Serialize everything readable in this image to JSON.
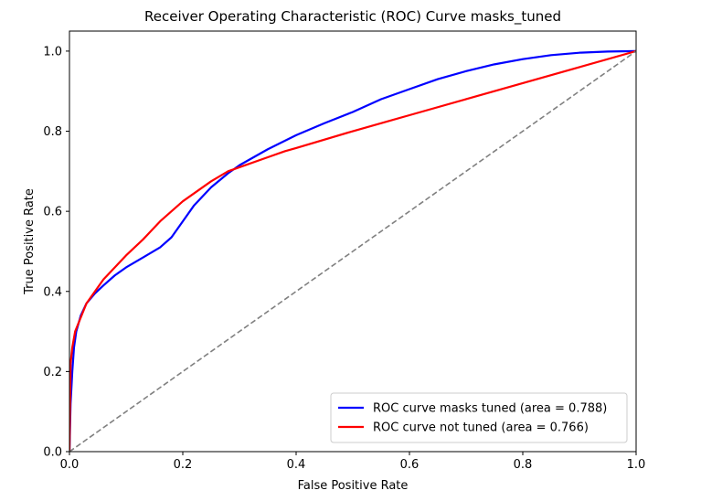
{
  "chart_data": {
    "type": "line",
    "title": "Receiver Operating Characteristic (ROC) Curve masks_tuned",
    "xlabel": "False Positive Rate",
    "ylabel": "True Positive Rate",
    "xlim": [
      0.0,
      1.0
    ],
    "ylim": [
      0.0,
      1.05
    ],
    "xticks": [
      0.0,
      0.2,
      0.4,
      0.6,
      0.8,
      1.0
    ],
    "yticks": [
      0.0,
      0.2,
      0.4,
      0.6,
      0.8,
      1.0
    ],
    "xtick_labels": [
      "0.0",
      "0.2",
      "0.4",
      "0.6",
      "0.8",
      "1.0"
    ],
    "ytick_labels": [
      "0.0",
      "0.2",
      "0.4",
      "0.6",
      "0.8",
      "1.0"
    ],
    "grid": false,
    "legend_position": "lower-right",
    "series": [
      {
        "name": "ROC curve masks tuned (area = 0.788)",
        "color": "#0000ff",
        "style": "solid",
        "x": [
          0.0,
          0.002,
          0.005,
          0.008,
          0.012,
          0.02,
          0.03,
          0.045,
          0.06,
          0.08,
          0.1,
          0.13,
          0.16,
          0.18,
          0.2,
          0.22,
          0.25,
          0.28,
          0.3,
          0.35,
          0.4,
          0.45,
          0.5,
          0.55,
          0.6,
          0.65,
          0.7,
          0.75,
          0.8,
          0.85,
          0.9,
          0.95,
          1.0
        ],
        "y": [
          0.0,
          0.12,
          0.2,
          0.26,
          0.3,
          0.34,
          0.37,
          0.395,
          0.415,
          0.44,
          0.46,
          0.485,
          0.51,
          0.535,
          0.575,
          0.615,
          0.66,
          0.695,
          0.715,
          0.755,
          0.79,
          0.82,
          0.848,
          0.88,
          0.905,
          0.93,
          0.95,
          0.967,
          0.98,
          0.99,
          0.996,
          0.999,
          1.0
        ]
      },
      {
        "name": "ROC curve not tuned (area = 0.766)",
        "color": "#ff0000",
        "style": "solid",
        "x": [
          0.0,
          0.002,
          0.005,
          0.01,
          0.02,
          0.03,
          0.045,
          0.06,
          0.08,
          0.1,
          0.13,
          0.16,
          0.2,
          0.25,
          0.28,
          0.3,
          0.35,
          0.38,
          0.4,
          0.5,
          0.6,
          0.7,
          0.8,
          0.9,
          1.0
        ],
        "y": [
          0.0,
          0.22,
          0.26,
          0.3,
          0.335,
          0.37,
          0.4,
          0.43,
          0.46,
          0.49,
          0.53,
          0.575,
          0.625,
          0.675,
          0.7,
          0.71,
          0.735,
          0.75,
          0.758,
          0.8,
          0.84,
          0.88,
          0.92,
          0.96,
          1.0
        ]
      },
      {
        "name": "",
        "color": "#808080",
        "style": "dashed",
        "x": [
          0.0,
          1.0
        ],
        "y": [
          0.0,
          1.0
        ]
      }
    ]
  }
}
